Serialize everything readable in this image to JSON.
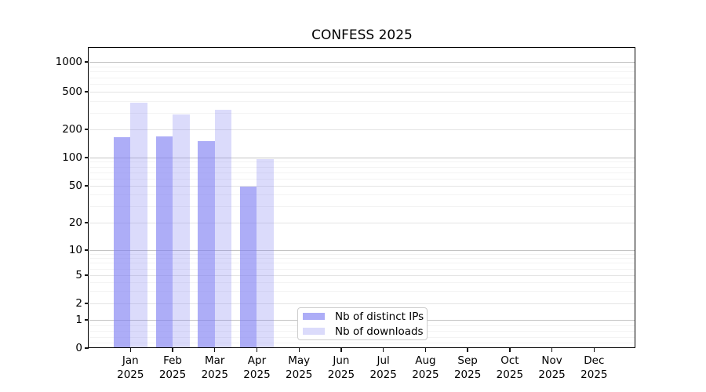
{
  "window": {
    "title": "CONFESS 2025"
  },
  "chart_data": {
    "type": "bar",
    "title": "CONFESS 2025",
    "categories": [
      "Jan",
      "Feb",
      "Mar",
      "Apr",
      "May",
      "Jun",
      "Jul",
      "Aug",
      "Sep",
      "Oct",
      "Nov",
      "Dec"
    ],
    "category_sublabel": "2025",
    "series": [
      {
        "name": "Nb of distinct IPs",
        "color": "rgba(122,122,242,0.62)",
        "values": [
          165,
          168,
          150,
          49,
          null,
          null,
          null,
          null,
          null,
          null,
          null,
          null
        ]
      },
      {
        "name": "Nb of downloads",
        "color": "rgba(122,122,242,0.27)",
        "values": [
          380,
          290,
          320,
          97,
          null,
          null,
          null,
          null,
          null,
          null,
          null,
          null
        ]
      }
    ],
    "y_axis": {
      "scale": "symlog",
      "ticks": [
        0,
        1,
        2,
        5,
        10,
        20,
        50,
        100,
        200,
        500,
        1000
      ]
    },
    "x_axis": {
      "year_row": "2025"
    },
    "grid": {
      "on": true,
      "major_color": "#c4c4c4",
      "tick_color": "#e4e4e4",
      "minor_color": "#f3f3f3"
    },
    "legend": {
      "position": "lower-center",
      "entries": [
        "Nb of distinct IPs",
        "Nb of downloads"
      ]
    },
    "ylim": [
      0,
      1400
    ],
    "xlabel": "",
    "ylabel": ""
  }
}
